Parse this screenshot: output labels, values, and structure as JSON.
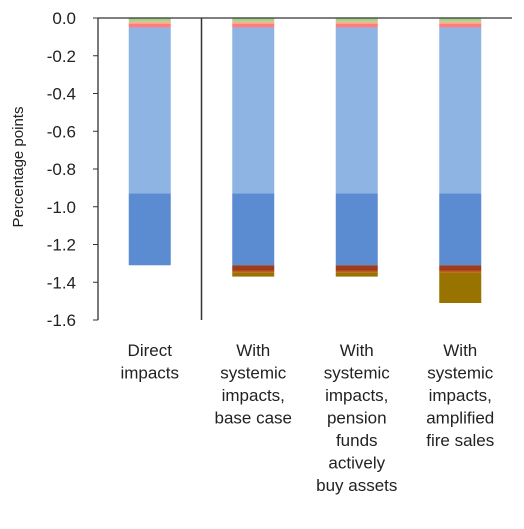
{
  "chart_data": {
    "type": "bar",
    "stacked": true,
    "ylabel": "Percentage points",
    "ylim": [
      -1.6,
      0.0
    ],
    "yticks": [
      "0.0",
      "-0.2",
      "-0.4",
      "-0.6",
      "-0.8",
      "-1.0",
      "-1.2",
      "-1.4",
      "-1.6"
    ],
    "ytick_values": [
      0.0,
      -0.2,
      -0.4,
      -0.6,
      -0.8,
      -1.0,
      -1.2,
      -1.4,
      -1.6
    ],
    "grid": false,
    "categories": [
      [
        "Direct",
        "impacts"
      ],
      [
        "With",
        "systemic",
        "impacts,",
        "base case"
      ],
      [
        "With",
        "systemic",
        "impacts,",
        "pension",
        "funds",
        "actively",
        "buy assets"
      ],
      [
        "With",
        "systemic",
        "impacts,",
        "amplified",
        "fire sales"
      ]
    ],
    "series": [
      {
        "color": "#a9d18e",
        "values": [
          -0.02,
          -0.02,
          -0.02,
          -0.02
        ]
      },
      {
        "color": "#f4b183",
        "values": [
          -0.01,
          -0.01,
          -0.01,
          -0.01
        ]
      },
      {
        "color": "#ff7c80",
        "values": [
          -0.02,
          -0.02,
          -0.02,
          -0.02
        ]
      },
      {
        "color": "#8eb4e3",
        "values": [
          -0.88,
          -0.88,
          -0.88,
          -0.88
        ]
      },
      {
        "color": "#5b8bd0",
        "values": [
          -0.38,
          -0.38,
          -0.38,
          -0.38
        ]
      },
      {
        "color": "#9b3d1c",
        "values": [
          0.0,
          -0.03,
          -0.03,
          -0.03
        ]
      },
      {
        "color": "#c55a11",
        "values": [
          0.0,
          -0.01,
          -0.01,
          -0.01
        ]
      },
      {
        "color": "#997300",
        "values": [
          0.0,
          -0.02,
          -0.02,
          -0.16
        ]
      }
    ],
    "separator_after_category": 0
  }
}
